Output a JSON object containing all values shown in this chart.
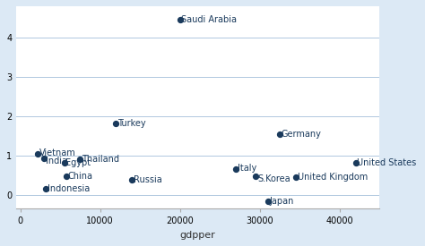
{
  "points": [
    {
      "country": "Saudi Arabia",
      "gdpper": 20000,
      "gold_pc": 4.45,
      "x_off": 200,
      "y_off": 0
    },
    {
      "country": "Turkey",
      "gdpper": 12000,
      "gold_pc": 1.83,
      "x_off": 200,
      "y_off": 0
    },
    {
      "country": "Germany",
      "gdpper": 32500,
      "gold_pc": 1.55,
      "x_off": 200,
      "y_off": 0
    },
    {
      "country": "Vietnam",
      "gdpper": 2200,
      "gold_pc": 1.05,
      "x_off": 200,
      "y_off": 0.02
    },
    {
      "country": "India",
      "gdpper": 3000,
      "gold_pc": 0.93,
      "x_off": 200,
      "y_off": -0.07
    },
    {
      "country": "Thailand",
      "gdpper": 7500,
      "gold_pc": 0.9,
      "x_off": 200,
      "y_off": 0
    },
    {
      "country": "Egypt",
      "gdpper": 5500,
      "gold_pc": 0.82,
      "x_off": 200,
      "y_off": 0
    },
    {
      "country": "Italy",
      "gdpper": 27000,
      "gold_pc": 0.65,
      "x_off": 200,
      "y_off": 0.03
    },
    {
      "country": "United Kingdom",
      "gdpper": 34500,
      "gold_pc": 0.45,
      "x_off": 200,
      "y_off": 0
    },
    {
      "country": "S.Korea",
      "gdpper": 29500,
      "gold_pc": 0.47,
      "x_off": 200,
      "y_off": -0.05
    },
    {
      "country": "United States",
      "gdpper": 42000,
      "gold_pc": 0.83,
      "x_off": 200,
      "y_off": 0
    },
    {
      "country": "China",
      "gdpper": 5800,
      "gold_pc": 0.48,
      "x_off": 200,
      "y_off": 0
    },
    {
      "country": "Russia",
      "gdpper": 14000,
      "gold_pc": 0.38,
      "x_off": 200,
      "y_off": 0
    },
    {
      "country": "Indonesia",
      "gdpper": 3200,
      "gold_pc": 0.17,
      "x_off": 200,
      "y_off": 0
    },
    {
      "country": "Japan",
      "gdpper": 31000,
      "gold_pc": -0.15,
      "x_off": 200,
      "y_off": 0
    }
  ],
  "dot_color": "#1a3a5c",
  "dot_size": 18,
  "xlabel": "gdpper",
  "xlim": [
    -500,
    45000
  ],
  "ylim": [
    -0.35,
    4.8
  ],
  "yticks": [
    0,
    1,
    2,
    3,
    4
  ],
  "xticks": [
    0,
    10000,
    20000,
    30000,
    40000
  ],
  "xtick_labels": [
    "0",
    "10000",
    "20000",
    "30000",
    "40000"
  ],
  "bg_color": "#dce9f5",
  "plot_bg_color": "#ffffff",
  "grid_color": "#b0c8e0",
  "font_size_ticks": 7,
  "font_size_axis": 8,
  "label_font_size": 7
}
